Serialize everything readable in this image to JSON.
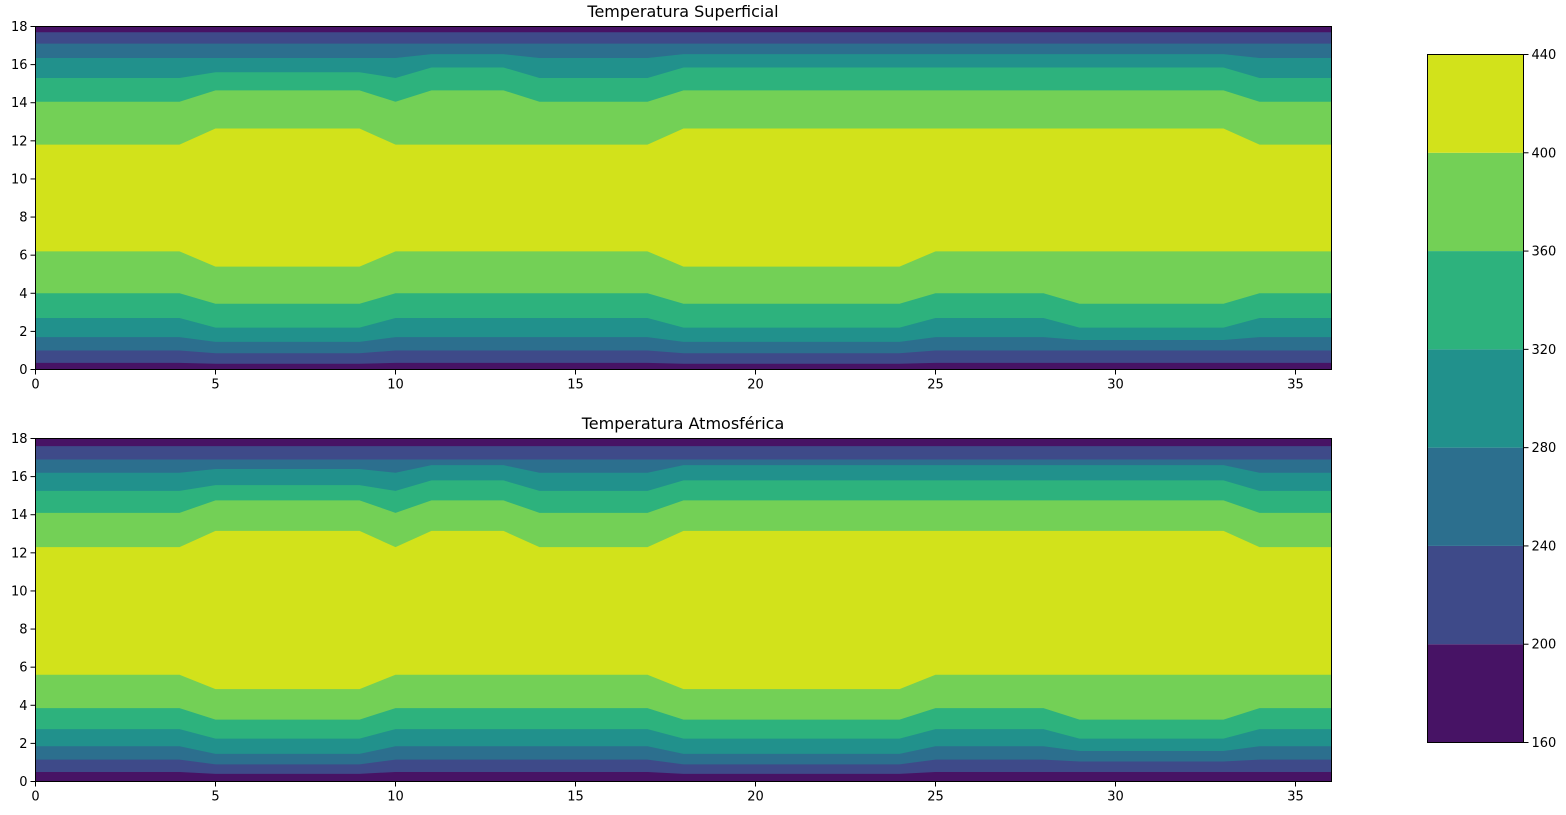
{
  "chart_data": [
    {
      "type": "heatmap",
      "subtype": "filled-contour",
      "title": "Temperatura Superficial",
      "xlabel": "",
      "ylabel": "",
      "xlim": [
        0,
        36
      ],
      "ylim": [
        0,
        18
      ],
      "x_ticks": [
        0,
        5,
        10,
        15,
        20,
        25,
        30,
        35
      ],
      "y_ticks": [
        0,
        2,
        4,
        6,
        8,
        10,
        12,
        14,
        16,
        18
      ],
      "x": [
        0,
        4,
        5,
        9,
        10,
        11,
        13,
        14,
        17,
        18,
        24,
        25,
        28,
        29,
        33,
        34,
        36
      ],
      "level_boundaries_from_bottom": [
        [
          0.35,
          0.35,
          0.3,
          0.3,
          0.35,
          0.35,
          0.35,
          0.35,
          0.35,
          0.3,
          0.3,
          0.35,
          0.35,
          0.35,
          0.35,
          0.35,
          0.35
        ],
        [
          1.0,
          1.0,
          0.85,
          0.85,
          1.0,
          1.0,
          1.0,
          1.0,
          1.0,
          0.85,
          0.85,
          1.0,
          1.0,
          1.0,
          1.0,
          1.0,
          1.0
        ],
        [
          1.7,
          1.7,
          1.45,
          1.45,
          1.7,
          1.7,
          1.7,
          1.7,
          1.7,
          1.45,
          1.45,
          1.7,
          1.7,
          1.55,
          1.55,
          1.7,
          1.7
        ],
        [
          2.7,
          2.7,
          2.2,
          2.2,
          2.7,
          2.7,
          2.7,
          2.7,
          2.7,
          2.2,
          2.2,
          2.7,
          2.7,
          2.2,
          2.2,
          2.7,
          2.7
        ],
        [
          4.0,
          4.0,
          3.45,
          3.45,
          4.0,
          4.0,
          4.0,
          4.0,
          4.0,
          3.45,
          3.45,
          4.0,
          4.0,
          3.45,
          3.45,
          4.0,
          4.0
        ],
        [
          6.2,
          6.2,
          5.4,
          5.4,
          6.2,
          6.2,
          6.2,
          6.2,
          6.2,
          5.4,
          5.4,
          6.2,
          6.2,
          6.2,
          6.2,
          6.2,
          6.2
        ]
      ],
      "level_boundaries_from_top": [
        [
          17.7,
          17.7,
          17.7,
          17.7,
          17.7,
          17.7,
          17.7,
          17.7,
          17.7,
          17.7,
          17.7,
          17.7,
          17.7,
          17.7,
          17.7,
          17.7,
          17.7
        ],
        [
          17.1,
          17.1,
          17.1,
          17.1,
          17.1,
          17.1,
          17.1,
          17.1,
          17.1,
          17.1,
          17.1,
          17.1,
          17.1,
          17.1,
          17.1,
          17.1,
          17.1
        ],
        [
          16.35,
          16.35,
          16.35,
          16.35,
          16.35,
          16.55,
          16.55,
          16.35,
          16.35,
          16.55,
          16.55,
          16.55,
          16.55,
          16.55,
          16.55,
          16.35,
          16.35
        ],
        [
          15.3,
          15.3,
          15.6,
          15.6,
          15.3,
          15.85,
          15.85,
          15.3,
          15.3,
          15.85,
          15.85,
          15.85,
          15.85,
          15.85,
          15.85,
          15.3,
          15.3
        ],
        [
          14.05,
          14.05,
          14.65,
          14.65,
          14.05,
          14.65,
          14.65,
          14.05,
          14.05,
          14.65,
          14.65,
          14.65,
          14.65,
          14.65,
          14.65,
          14.05,
          14.05
        ],
        [
          11.8,
          11.8,
          12.65,
          12.65,
          11.8,
          11.8,
          11.8,
          11.8,
          11.8,
          12.65,
          12.65,
          12.65,
          12.65,
          12.65,
          12.65,
          11.8,
          11.8
        ]
      ]
    },
    {
      "type": "heatmap",
      "subtype": "filled-contour",
      "title": "Temperatura Atmosférica",
      "xlabel": "",
      "ylabel": "",
      "xlim": [
        0,
        36
      ],
      "ylim": [
        0,
        18
      ],
      "x_ticks": [
        0,
        5,
        10,
        15,
        20,
        25,
        30,
        35
      ],
      "y_ticks": [
        0,
        2,
        4,
        6,
        8,
        10,
        12,
        14,
        16,
        18
      ],
      "x": [
        0,
        4,
        5,
        9,
        10,
        11,
        13,
        14,
        17,
        18,
        24,
        25,
        28,
        29,
        33,
        34,
        36
      ],
      "level_boundaries_from_bottom": [
        [
          0.5,
          0.5,
          0.4,
          0.4,
          0.5,
          0.5,
          0.5,
          0.5,
          0.5,
          0.4,
          0.4,
          0.5,
          0.5,
          0.5,
          0.5,
          0.5,
          0.5
        ],
        [
          1.15,
          1.15,
          0.9,
          0.9,
          1.15,
          1.15,
          1.15,
          1.15,
          1.15,
          0.9,
          0.9,
          1.15,
          1.15,
          1.05,
          1.05,
          1.15,
          1.15
        ],
        [
          1.85,
          1.85,
          1.45,
          1.45,
          1.85,
          1.85,
          1.85,
          1.85,
          1.85,
          1.45,
          1.45,
          1.85,
          1.85,
          1.6,
          1.6,
          1.85,
          1.85
        ],
        [
          2.75,
          2.75,
          2.25,
          2.25,
          2.75,
          2.75,
          2.75,
          2.75,
          2.75,
          2.25,
          2.25,
          2.75,
          2.75,
          2.25,
          2.25,
          2.75,
          2.75
        ],
        [
          3.85,
          3.85,
          3.25,
          3.25,
          3.85,
          3.85,
          3.85,
          3.85,
          3.85,
          3.25,
          3.25,
          3.85,
          3.85,
          3.25,
          3.25,
          3.85,
          3.85
        ],
        [
          5.6,
          5.6,
          4.85,
          4.85,
          5.6,
          5.6,
          5.6,
          5.6,
          5.6,
          4.85,
          4.85,
          5.6,
          5.6,
          5.6,
          5.6,
          5.6,
          5.6
        ]
      ],
      "level_boundaries_from_top": [
        [
          17.6,
          17.6,
          17.6,
          17.6,
          17.6,
          17.6,
          17.6,
          17.6,
          17.6,
          17.6,
          17.6,
          17.6,
          17.6,
          17.6,
          17.6,
          17.6,
          17.6
        ],
        [
          16.9,
          16.9,
          16.9,
          16.9,
          16.9,
          16.9,
          16.9,
          16.9,
          16.9,
          16.9,
          16.9,
          16.9,
          16.9,
          16.9,
          16.9,
          16.9,
          16.9
        ],
        [
          16.2,
          16.2,
          16.4,
          16.4,
          16.2,
          16.6,
          16.6,
          16.2,
          16.2,
          16.6,
          16.6,
          16.6,
          16.6,
          16.6,
          16.6,
          16.2,
          16.2
        ],
        [
          15.25,
          15.25,
          15.55,
          15.55,
          15.25,
          15.8,
          15.8,
          15.25,
          15.25,
          15.8,
          15.8,
          15.8,
          15.8,
          15.8,
          15.8,
          15.25,
          15.25
        ],
        [
          14.1,
          14.1,
          14.75,
          14.75,
          14.1,
          14.75,
          14.75,
          14.1,
          14.1,
          14.75,
          14.75,
          14.75,
          14.75,
          14.75,
          14.75,
          14.1,
          14.1
        ],
        [
          12.3,
          12.3,
          13.15,
          13.15,
          12.3,
          13.15,
          13.15,
          12.3,
          12.3,
          13.15,
          13.15,
          13.15,
          13.15,
          13.15,
          13.15,
          12.3,
          12.3
        ]
      ]
    }
  ],
  "colorbar": {
    "levels": [
      160,
      200,
      240,
      280,
      320,
      360,
      400,
      440
    ],
    "tick_labels": [
      "160",
      "200",
      "240",
      "280",
      "320",
      "360",
      "400",
      "440"
    ],
    "colors": [
      "#471365",
      "#3e4a89",
      "#2c6f8e",
      "#21918c",
      "#2db27d",
      "#73d056",
      "#d2e21b"
    ]
  }
}
